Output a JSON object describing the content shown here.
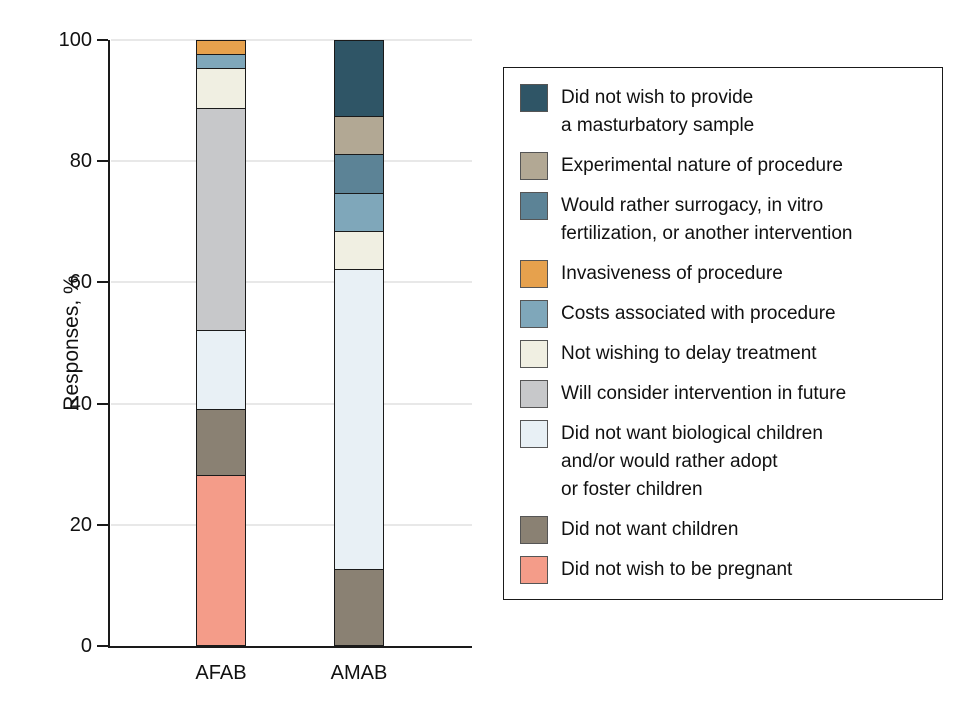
{
  "chart_data": {
    "type": "bar",
    "subtype": "stacked-percent",
    "title": "",
    "ylabel": "Responses, %",
    "xlabel": "",
    "ylim": [
      0,
      100
    ],
    "yticks": [
      0,
      20,
      40,
      60,
      80,
      100
    ],
    "grid": "horizontal",
    "legend_position": "right",
    "categories": [
      "AFAB",
      "AMAB"
    ],
    "series": [
      {
        "name": "Did not wish to provide a masturbatory sample",
        "label_lines": [
          "Did not wish to provide",
          "a masturbatory sample"
        ],
        "color": "#2f5566",
        "values": [
          0,
          12.5
        ]
      },
      {
        "name": "Experimental nature of procedure",
        "label_lines": [
          "Experimental nature of procedure"
        ],
        "color": "#b2a894",
        "values": [
          0,
          6.25
        ]
      },
      {
        "name": "Would rather surrogacy, in vitro fertilization, or another intervention",
        "label_lines": [
          "Would rather surrogacy, in vitro",
          "fertilization, or another intervention"
        ],
        "color": "#5c8396",
        "values": [
          0,
          6.25
        ]
      },
      {
        "name": "Invasiveness of procedure",
        "label_lines": [
          "Invasiveness of procedure"
        ],
        "color": "#e6a14d",
        "values": [
          2.2,
          0
        ]
      },
      {
        "name": "Costs associated with procedure",
        "label_lines": [
          "Costs associated with procedure"
        ],
        "color": "#7fa7ba",
        "values": [
          2.2,
          6.25
        ]
      },
      {
        "name": "Not wishing to delay treatment",
        "label_lines": [
          "Not wishing to delay treatment"
        ],
        "color": "#f0efe2",
        "values": [
          6.5,
          6.25
        ]
      },
      {
        "name": "Will consider intervention in future",
        "label_lines": [
          "Will consider intervention in future"
        ],
        "color": "#c7c8ca",
        "values": [
          37.0,
          0
        ]
      },
      {
        "name": "Did not want biological children and/or would rather adopt or foster children",
        "label_lines": [
          "Did not want biological children",
          "and/or would rather adopt",
          "or foster children"
        ],
        "color": "#e8f0f5",
        "values": [
          13.0,
          50.0
        ]
      },
      {
        "name": "Did not want children",
        "label_lines": [
          "Did not want children"
        ],
        "color": "#8a8173",
        "values": [
          10.9,
          12.5
        ]
      },
      {
        "name": "Did not wish to be pregnant",
        "label_lines": [
          "Did not wish to be pregnant"
        ],
        "color": "#f49c89",
        "values": [
          28.2,
          0
        ]
      }
    ],
    "colors": {
      "axis": "#1a1a1a",
      "gridline": "#e8e8e8",
      "background": "#ffffff"
    }
  }
}
